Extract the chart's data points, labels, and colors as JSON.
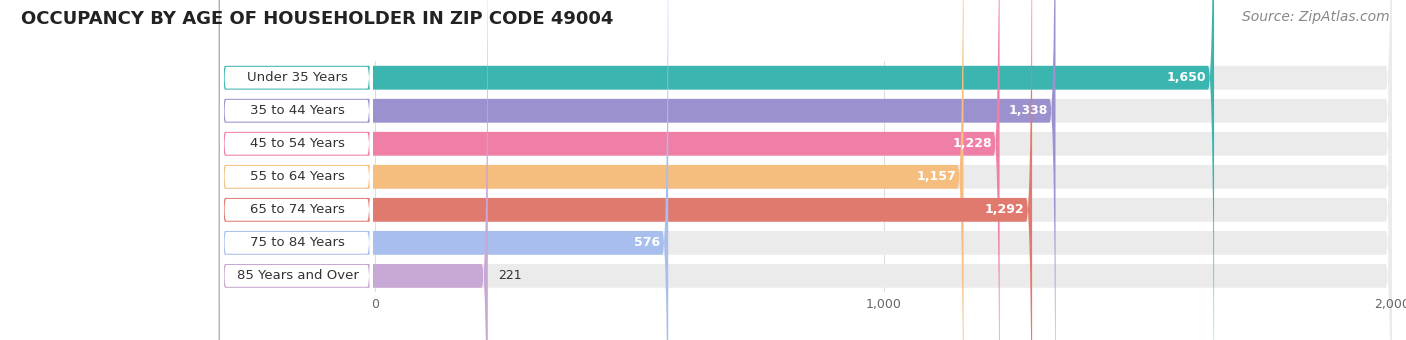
{
  "title": "OCCUPANCY BY AGE OF HOUSEHOLDER IN ZIP CODE 49004",
  "source": "Source: ZipAtlas.com",
  "categories": [
    "Under 35 Years",
    "35 to 44 Years",
    "45 to 54 Years",
    "55 to 64 Years",
    "65 to 74 Years",
    "75 to 84 Years",
    "85 Years and Over"
  ],
  "values": [
    1650,
    1338,
    1228,
    1157,
    1292,
    576,
    221
  ],
  "bar_colors": [
    "#3ab5af",
    "#9b91ce",
    "#f07fa8",
    "#f5be7e",
    "#e07a6f",
    "#a8bfee",
    "#c8a8d4"
  ],
  "bar_bg_color": "#ebebeb",
  "label_bg_color": "#ffffff",
  "xlim": [
    0,
    2000
  ],
  "xticks": [
    0,
    1000,
    2000
  ],
  "title_fontsize": 13,
  "source_fontsize": 10,
  "label_fontsize": 9.5,
  "value_fontsize": 9,
  "bg_color": "#ffffff",
  "grid_color": "#dddddd",
  "row_bg_color": "#f5f5f5"
}
